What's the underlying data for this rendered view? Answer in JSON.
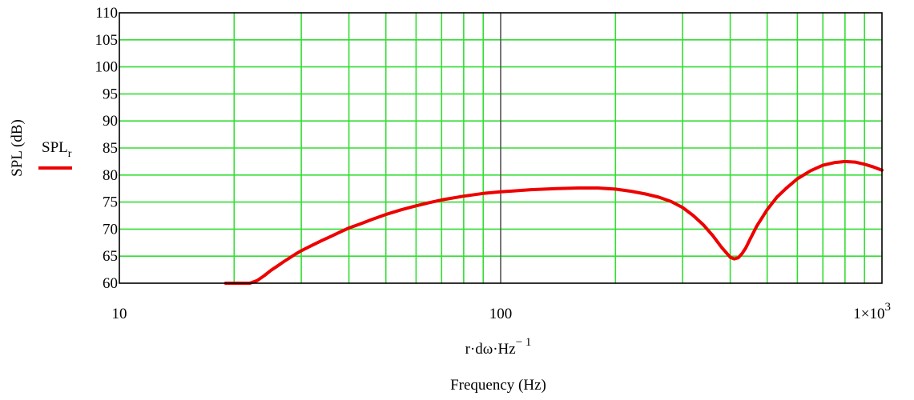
{
  "chart_data": {
    "type": "line",
    "title": "",
    "xlabel_expression": {
      "base": "r·dω·Hz",
      "exponent": "− 1"
    },
    "xlabel": "Frequency (Hz)",
    "ylabel": "SPL (dB)",
    "x_scale": "log",
    "xlim": [
      10,
      1000
    ],
    "ylim": [
      60,
      110
    ],
    "x_tick_labels": [
      "10",
      "100",
      "1×10"
    ],
    "x_tick_last_exponent": "3",
    "x_tick_values": [
      10,
      100,
      1000
    ],
    "y_tick_values": [
      60,
      65,
      70,
      75,
      80,
      85,
      90,
      95,
      100,
      105,
      110
    ],
    "grid": true,
    "legend_position": "left",
    "colors": {
      "series": "#ee0000",
      "grid": "#33dd33",
      "reference": "#555555"
    },
    "series": [
      {
        "name": "SPL",
        "name_subscript": "r",
        "x": [
          19,
          20,
          21,
          22,
          23,
          24,
          25,
          26,
          27,
          28,
          29,
          30,
          32,
          34,
          36,
          38,
          40,
          43,
          46,
          50,
          55,
          60,
          65,
          70,
          80,
          90,
          100,
          120,
          140,
          160,
          180,
          200,
          220,
          240,
          260,
          280,
          300,
          320,
          340,
          360,
          380,
          400,
          410,
          420,
          430,
          440,
          450,
          470,
          500,
          530,
          560,
          600,
          650,
          700,
          750,
          800,
          850,
          900,
          950,
          1000
        ],
        "values": [
          60,
          60,
          60,
          60,
          60.5,
          61.4,
          62.4,
          63.2,
          64.0,
          64.7,
          65.4,
          66.0,
          67.0,
          67.9,
          68.7,
          69.5,
          70.2,
          71.0,
          71.8,
          72.7,
          73.6,
          74.3,
          74.9,
          75.4,
          76.1,
          76.6,
          76.9,
          77.3,
          77.5,
          77.6,
          77.6,
          77.4,
          77.0,
          76.5,
          75.9,
          75.1,
          74.0,
          72.5,
          70.8,
          68.8,
          66.6,
          64.8,
          64.5,
          64.7,
          65.5,
          66.6,
          68.0,
          70.6,
          73.6,
          75.9,
          77.5,
          79.3,
          80.8,
          81.8,
          82.3,
          82.5,
          82.4,
          82.0,
          81.5,
          80.9
        ]
      }
    ]
  }
}
